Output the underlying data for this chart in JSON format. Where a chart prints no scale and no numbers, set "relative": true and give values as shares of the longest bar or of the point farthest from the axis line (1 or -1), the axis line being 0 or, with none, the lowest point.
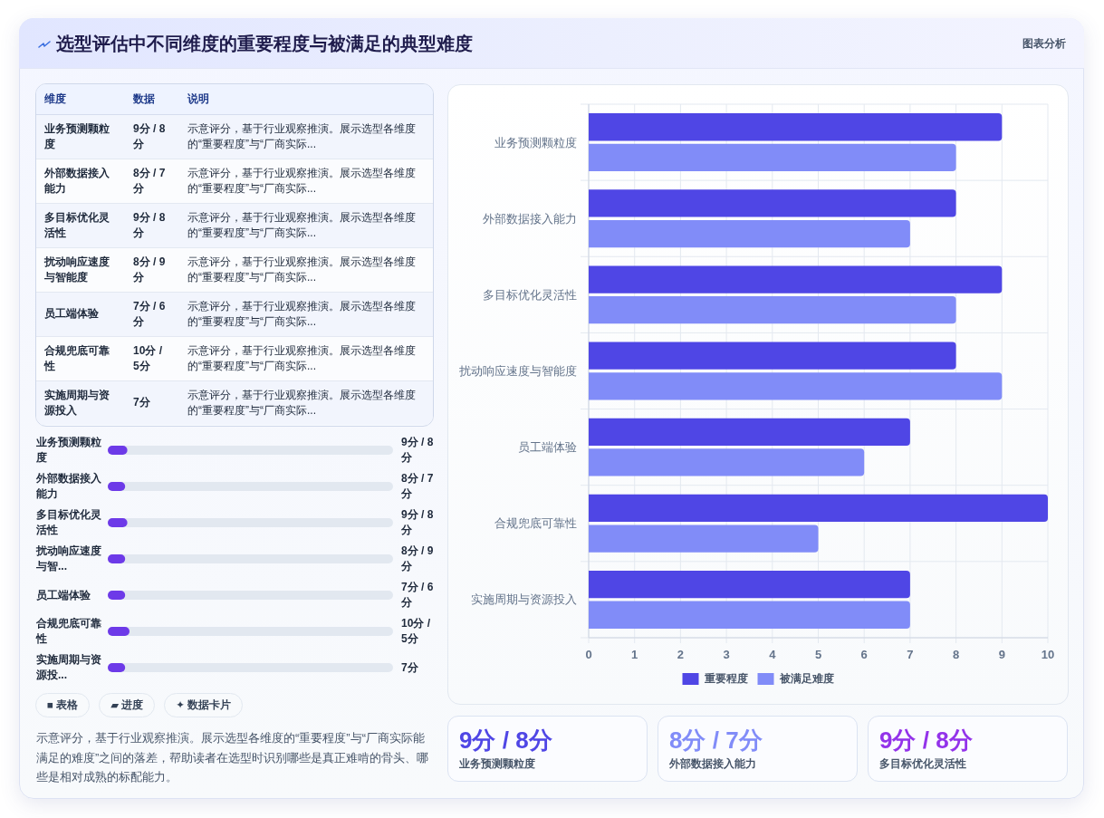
{
  "chart_data": [
    {
      "type": "other",
      "title": "选型评估中不同维度的重要程度与被满足的典型难度",
      "annotations": [
        "图表分析"
      ]
    },
    {
      "type": "other",
      "categories": [
        "业务预测颗粒度",
        "外部数据接入能力",
        "多目标优化灵活性",
        "扰动响应速度与智能度",
        "员工端体验",
        "合规兜底可靠性",
        "实施周期与资源投入"
      ],
      "value_labels": [
        "9分 / 8分",
        "8分 / 7分",
        "9分 / 8分",
        "8分 / 9分",
        "7分 / 6分",
        "10分 / 5分",
        "7分"
      ],
      "annotations": [
        "维度",
        "数据",
        "说明",
        "示意评分，基于行业观察推演。展示选型各维度的“重要程度”与“厂商实际...",
        "示意评分，基于行业观察推演。展示选型各维度的“重要程度”与“厂商实际...",
        "示意评分，基于行业观察推演。展示选型各维度的“重要程度”与“厂商实际...",
        "示意评分，基于行业观察推演。展示选型各维度的“重要程度”与“厂商实际...",
        "示意评分，基于行业观察推演。展示选型各维度的“重要程度”与“厂商实际...",
        "示意评分，基于行业观察推演。展示选型各维度的“重要程度”与“厂商实际...",
        "示意评分，基于行业观察推演。展示选型各维度的“重要程度”与“厂商实际..."
      ]
    },
    {
      "type": "bar",
      "orientation": "horizontal",
      "relative": true,
      "categories": [
        "业务预测颗粒度",
        "外部数据接入能力",
        "多目标优化灵活性",
        "扰动响应速度与智...",
        "员工端体验",
        "合规兜底可靠性",
        "实施周期与资源投..."
      ],
      "values": [
        0.9,
        0.8,
        0.9,
        0.8,
        0.8,
        1,
        0.8
      ],
      "annotations": [
        "9分 / 8分",
        "8分 / 7分",
        "9分 / 8分",
        "8分 / 9分",
        "7分 / 6分",
        "10分 / 5分",
        "7分"
      ],
      "color": "#6d3ae8"
    },
    {
      "type": "other",
      "annotations": [
        "■ 表格",
        "▰ 进度",
        "✦ 数据卡片",
        "示意评分，基于行业观察推演。展示选型各维度的“重要程度”与“厂商实际能满足的难度”之间的落差，帮助读者在选型时识别哪些是真正难啃的骨头、哪些是相对成熟的标配能力。"
      ]
    },
    {
      "type": "bar",
      "orientation": "horizontal",
      "categories": [
        "业务预测颗粒度",
        "外部数据接入能力",
        "多目标优化灵活性",
        "扰动响应速度与智能度",
        "员工端体验",
        "合规兜底可靠性",
        "实施周期与资源投入"
      ],
      "series": [
        {
          "name": "重要程度",
          "color": "#4f46e5",
          "values": [
            9,
            8,
            9,
            8,
            7,
            10,
            7
          ]
        },
        {
          "name": "被满足难度",
          "color": "#818cf8",
          "values": [
            8,
            7,
            8,
            9,
            6,
            5,
            7
          ]
        }
      ],
      "xlim": [
        0,
        10
      ],
      "xticks": [
        0,
        1,
        2,
        3,
        4,
        5,
        6,
        7,
        8,
        9,
        10
      ],
      "grid": true,
      "legend": "bottom"
    },
    {
      "type": "other",
      "categories": [
        "业务预测颗粒度",
        "外部数据接入能力",
        "多目标优化灵活性"
      ],
      "value_labels": [
        "9分 / 8分",
        "8分 / 7分",
        "9分 / 8分"
      ]
    }
  ]
}
